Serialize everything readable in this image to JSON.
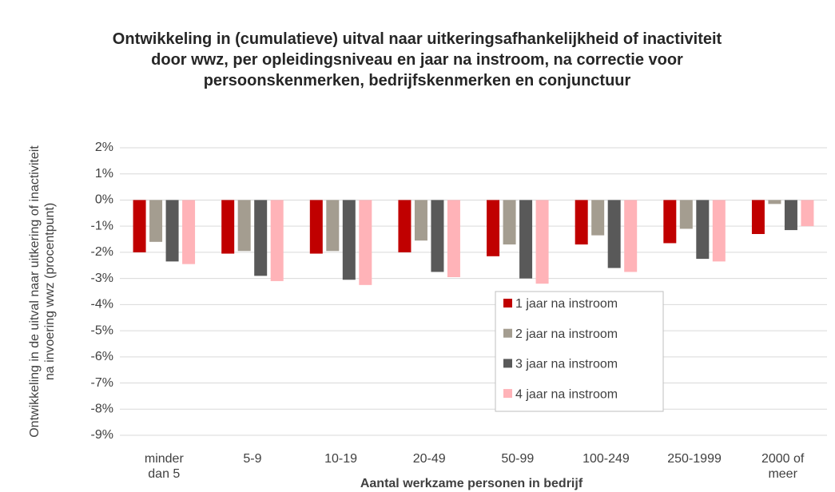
{
  "chart_data": {
    "type": "bar",
    "title": "Ontwikkeling in (cumulatieve) uitval naar uitkeringsafhankelijkheid of inactiviteit door wwz, per opleidingsniveau en jaar na instroom, na correctie voor persoonskenmerken, bedrijfskenmerken en conjunctuur",
    "y_label": "Ontwikkeling in de uitval naar uitkering of inactiviteit na invoering wwz (procentpunt)",
    "x_label": "Aantal werkzame personen in bedrijf",
    "categories": [
      "minder dan 5",
      "5-9",
      "10-19",
      "20-49",
      "50-99",
      "100-249",
      "250-1999",
      "2000 of meer"
    ],
    "series": [
      {
        "name": "1 jaar na instroom",
        "color": "#c00000",
        "values": [
          -2.0,
          -2.05,
          -2.05,
          -2.0,
          -2.15,
          -1.7,
          -1.65,
          -1.3
        ]
      },
      {
        "name": "2 jaar na instroom",
        "color": "#a49d90",
        "values": [
          -1.6,
          -1.95,
          -1.95,
          -1.55,
          -1.7,
          -1.35,
          -1.1,
          -0.15
        ]
      },
      {
        "name": "3 jaar na instroom",
        "color": "#595959",
        "values": [
          -2.35,
          -2.9,
          -3.05,
          -2.75,
          -3.0,
          -2.6,
          -2.25,
          -1.15
        ]
      },
      {
        "name": "4 jaar na instroom",
        "color": "#ffb3b8",
        "values": [
          -2.45,
          -3.1,
          -3.25,
          -2.95,
          -3.2,
          -2.75,
          -2.35,
          -1.0
        ]
      }
    ],
    "ylim": [
      -9,
      2
    ],
    "yticks": [
      {
        "value": 2,
        "label": "2%"
      },
      {
        "value": 1,
        "label": "1%"
      },
      {
        "value": 0,
        "label": "0%"
      },
      {
        "value": -1,
        "label": "-1%"
      },
      {
        "value": -2,
        "label": "-2%"
      },
      {
        "value": -3,
        "label": "-3%"
      },
      {
        "value": -4,
        "label": "-4%"
      },
      {
        "value": -5,
        "label": "-5%"
      },
      {
        "value": -6,
        "label": "-6%"
      },
      {
        "value": -7,
        "label": "-7%"
      },
      {
        "value": -8,
        "label": "-8%"
      },
      {
        "value": -9,
        "label": "-9%"
      }
    ],
    "grid": true,
    "legend": "center"
  }
}
